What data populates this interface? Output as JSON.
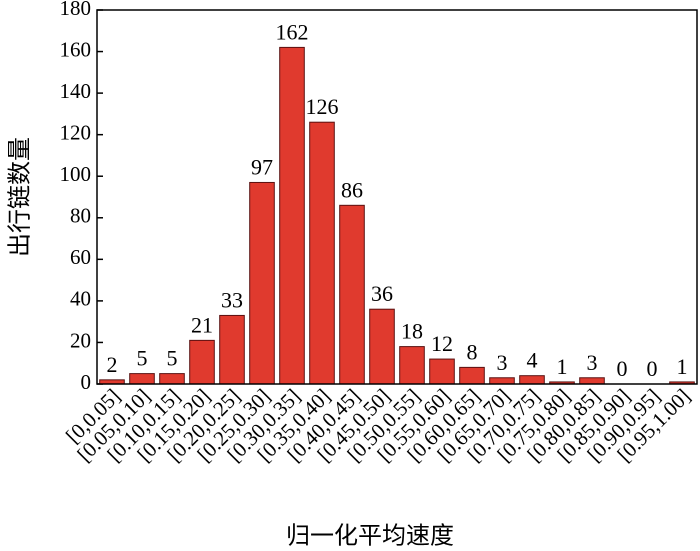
{
  "chart_data": {
    "type": "bar",
    "x_label": "归一化平均速度",
    "y_label": "出行链数量",
    "categories": [
      "[0,0.05]",
      "[0.05,0.10]",
      "[0.10,0.15]",
      "[0.15,0.20]",
      "[0.20,0.25]",
      "[0.25,0.30]",
      "[0.30,0.35]",
      "[0.35,0.40]",
      "[0.40,0.45]",
      "[0.45,0.50]",
      "[0.50,0.55]",
      "[0.55,0.60]",
      "[0.60,0.65]",
      "[0.65,0.70]",
      "[0.70,0.75]",
      "[0.75,0.80]",
      "[0.80,0.85]",
      "[0.85,0.90]",
      "[0.90,0.95]",
      "[0.95,1.00]"
    ],
    "values": [
      2,
      5,
      5,
      21,
      33,
      97,
      162,
      126,
      86,
      36,
      18,
      12,
      8,
      3,
      4,
      1,
      3,
      0,
      0,
      1
    ],
    "color": "#e03a2e",
    "ylim": [
      0,
      180
    ],
    "yticks": [
      0,
      20,
      40,
      60,
      80,
      100,
      120,
      140,
      160,
      180
    ]
  }
}
